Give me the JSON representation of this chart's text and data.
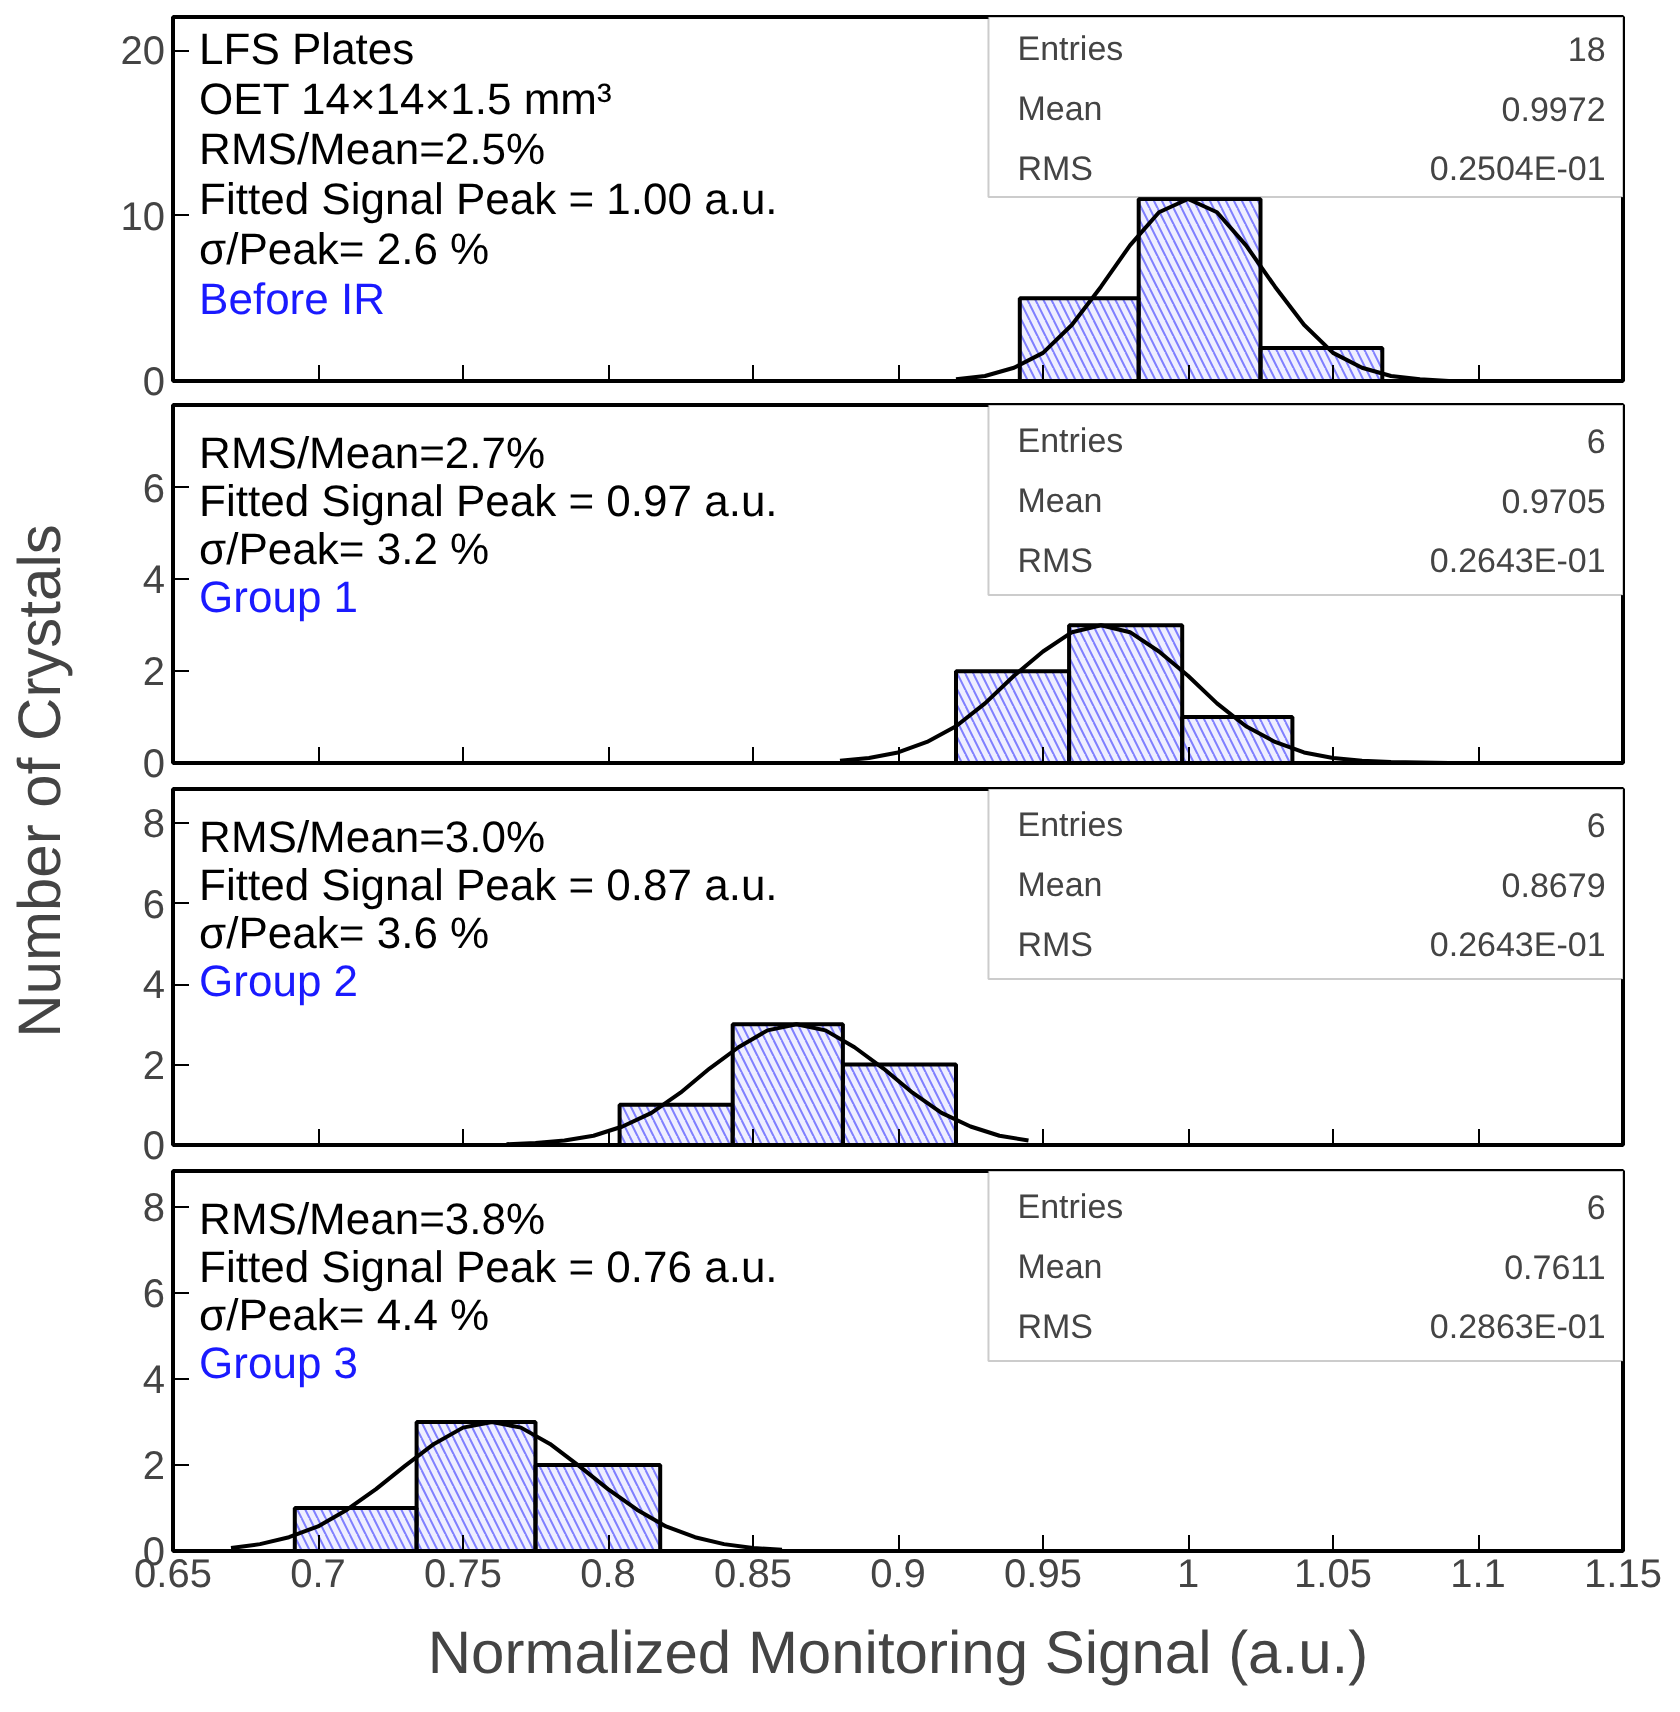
{
  "chart_data": [
    {
      "type": "histogram",
      "ylabel": "Number of Crystals",
      "xlim": [
        0.65,
        1.15
      ],
      "xticks": [
        0.65,
        0.7,
        0.75,
        0.8,
        0.85,
        0.9,
        0.95,
        1,
        1.05,
        1.1,
        1.15
      ],
      "ylim": [
        0,
        22
      ],
      "yticks": [
        0,
        10,
        20
      ],
      "tick_labels": "y",
      "annotations": [
        "LFS Plates",
        "OET  14×14×1.5 mm³",
        "RMS/Mean=2.5%",
        "Fitted Signal Peak = 1.00 a.u.",
        "σ/Peak= 2.6 %",
        "Before IR",
        "Entries",
        "18",
        "Mean",
        "0.9972",
        "RMS",
        "0.2504E-01"
      ],
      "series": [
        {
          "color": "#7f7fff",
          "bins": [
            0.942,
            0.983,
            1.025,
            1.067
          ],
          "values": [
            5,
            11,
            2
          ]
        },
        {
          "type": "line",
          "color": "#000000",
          "x": [
            0.92,
            0.93,
            0.94,
            0.95,
            0.96,
            0.97,
            0.98,
            0.99,
            1.0,
            1.01,
            1.02,
            1.03,
            1.04,
            1.05,
            1.06,
            1.07,
            1.08,
            1.09,
            1.1
          ],
          "values": [
            0.1,
            0.3,
            0.8,
            1.7,
            3.4,
            5.7,
            8.2,
            10.2,
            11,
            10.2,
            8.2,
            5.7,
            3.4,
            1.7,
            0.8,
            0.3,
            0.1,
            0,
            0
          ]
        }
      ]
    },
    {
      "type": "histogram",
      "xlim": [
        0.65,
        1.15
      ],
      "xticks": [
        0.65,
        0.7,
        0.75,
        0.8,
        0.85,
        0.9,
        0.95,
        1,
        1.05,
        1.1,
        1.15
      ],
      "ylim": [
        0,
        7.8
      ],
      "yticks": [
        0,
        2,
        4,
        6
      ],
      "tick_labels": "y",
      "annotations": [
        "RMS/Mean=2.7%",
        "Fitted Signal Peak = 0.97 a.u.",
        "σ/Peak= 3.2 %",
        "Group 1",
        "Entries",
        "6",
        "Mean",
        "0.9705",
        "RMS",
        "0.2643E-01"
      ],
      "series": [
        {
          "color": "#7f7fff",
          "bins": [
            0.92,
            0.959,
            0.998,
            1.036
          ],
          "values": [
            2,
            3,
            1
          ]
        },
        {
          "type": "line",
          "color": "#000000",
          "x": [
            0.88,
            0.89,
            0.9,
            0.91,
            0.92,
            0.93,
            0.94,
            0.95,
            0.96,
            0.97,
            0.98,
            0.99,
            1.0,
            1.01,
            1.02,
            1.03,
            1.04,
            1.05,
            1.06,
            1.07,
            1.08,
            1.09,
            1.1
          ],
          "values": [
            0.05,
            0.11,
            0.23,
            0.46,
            0.8,
            1.3,
            1.9,
            2.43,
            2.85,
            3,
            2.85,
            2.43,
            1.9,
            1.3,
            0.8,
            0.46,
            0.23,
            0.11,
            0.05,
            0.02,
            0.01,
            0.0,
            0.0
          ]
        }
      ]
    },
    {
      "type": "histogram",
      "xlim": [
        0.65,
        1.15
      ],
      "xticks": [
        0.65,
        0.7,
        0.75,
        0.8,
        0.85,
        0.9,
        0.95,
        1,
        1.05,
        1.1,
        1.15
      ],
      "ylim": [
        0,
        8.85
      ],
      "yticks": [
        0,
        2,
        4,
        6,
        8
      ],
      "tick_labels": "y",
      "annotations": [
        "RMS/Mean=3.0%",
        "Fitted Signal Peak = 0.87 a.u.",
        "σ/Peak= 3.6 %",
        "Group 2",
        "Entries",
        "6",
        "Mean",
        "0.8679",
        "RMS",
        "0.2643E-01"
      ],
      "series": [
        {
          "color": "#7f7fff",
          "bins": [
            0.804,
            0.843,
            0.881,
            0.92
          ],
          "values": [
            1,
            3,
            2
          ]
        },
        {
          "type": "line",
          "color": "#000000",
          "x": [
            0.765,
            0.775,
            0.785,
            0.795,
            0.805,
            0.815,
            0.825,
            0.835,
            0.845,
            0.855,
            0.865,
            0.875,
            0.885,
            0.895,
            0.905,
            0.915,
            0.925,
            0.935,
            0.945
          ],
          "values": [
            0.02,
            0.05,
            0.11,
            0.23,
            0.46,
            0.8,
            1.3,
            1.9,
            2.43,
            2.85,
            3,
            2.85,
            2.43,
            1.9,
            1.3,
            0.8,
            0.46,
            0.23,
            0.11
          ]
        }
      ]
    },
    {
      "type": "histogram",
      "xlabel": "Normalized Monitoring Signal (a.u.)",
      "xlim": [
        0.65,
        1.15
      ],
      "xticks": [
        0.65,
        0.7,
        0.75,
        0.8,
        0.85,
        0.9,
        0.95,
        1,
        1.05,
        1.1,
        1.15
      ],
      "ylim": [
        0,
        8.84
      ],
      "yticks": [
        0,
        2,
        4,
        6,
        8
      ],
      "annotations": [
        "RMS/Mean=3.8%",
        "Fitted Signal Peak = 0.76 a.u.",
        "σ/Peak= 4.4 %",
        "Group 3",
        "Entries",
        "6",
        "Mean",
        "0.7611",
        "RMS",
        "0.2863E-01"
      ],
      "series": [
        {
          "color": "#7f7fff",
          "bins": [
            0.692,
            0.734,
            0.775,
            0.818
          ],
          "values": [
            1,
            3,
            2
          ]
        },
        {
          "type": "line",
          "color": "#000000",
          "x": [
            0.67,
            0.68,
            0.69,
            0.7,
            0.71,
            0.72,
            0.73,
            0.74,
            0.75,
            0.76,
            0.77,
            0.78,
            0.79,
            0.8,
            0.81,
            0.82,
            0.83,
            0.84,
            0.85,
            0.86
          ],
          "values": [
            0.07,
            0.16,
            0.32,
            0.57,
            0.96,
            1.44,
            1.98,
            2.49,
            2.87,
            3,
            2.87,
            2.49,
            1.98,
            1.44,
            0.96,
            0.57,
            0.32,
            0.16,
            0.07,
            0.03
          ]
        }
      ]
    }
  ]
}
